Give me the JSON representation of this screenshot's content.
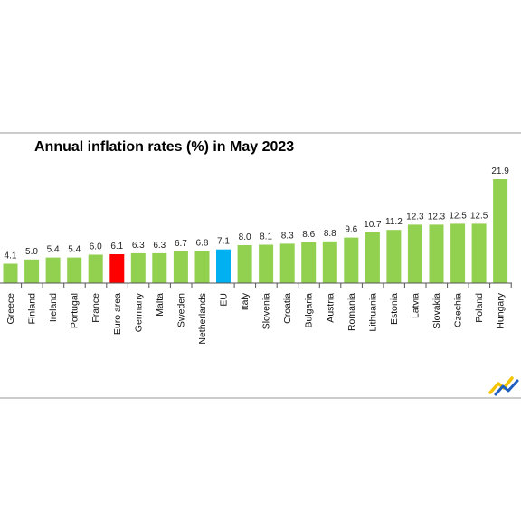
{
  "chart_data": {
    "type": "bar",
    "title": "Annual inflation rates (%) in May 2023",
    "xlabel": "",
    "ylabel": "",
    "ylim": [
      0,
      22
    ],
    "grid": false,
    "legend": "none",
    "categories": [
      "Greece",
      "Finland",
      "Ireland",
      "Portugal",
      "France",
      "Euro area",
      "Germany",
      "Malta",
      "Sweden",
      "Netherlands",
      "EU",
      "Italy",
      "Slovenia",
      "Croatia",
      "Bulgaria",
      "Austria",
      "Romania",
      "Lithuania",
      "Estonia",
      "Latvia",
      "Slovakia",
      "Czechia",
      "Poland",
      "Hungary"
    ],
    "values": [
      4.1,
      5.0,
      5.4,
      5.4,
      6.0,
      6.1,
      6.3,
      6.3,
      6.7,
      6.8,
      7.1,
      8.0,
      8.1,
      8.3,
      8.6,
      8.8,
      9.6,
      10.7,
      11.2,
      12.3,
      12.3,
      12.5,
      12.5,
      21.9
    ],
    "value_labels": [
      "4.1",
      "5.0",
      "5.4",
      "5.4",
      "6.0",
      "6.1",
      "6.3",
      "6.3",
      "6.7",
      "6.8",
      "7.1",
      "8.0",
      "8.1",
      "8.3",
      "8.6",
      "8.8",
      "9.6",
      "10.7",
      "11.2",
      "12.3",
      "12.3",
      "12.5",
      "12.5",
      "21.9"
    ],
    "colors": {
      "default": "#92d050",
      "Euro area": "#ff0000",
      "EU": "#00b0f0"
    }
  },
  "logo": {
    "name": "chevron-logo-icon",
    "colors": [
      "#f5c400",
      "#1f5fbf"
    ]
  }
}
